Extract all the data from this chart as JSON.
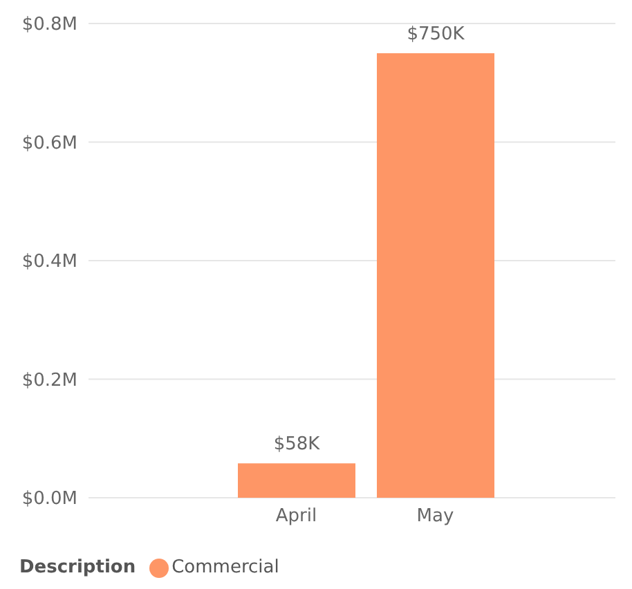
{
  "chart_data": {
    "type": "bar",
    "categories": [
      "April",
      "May"
    ],
    "series": [
      {
        "name": "Commercial",
        "color": "#fe9666",
        "values": [
          58000,
          750000
        ],
        "value_labels": [
          "$58K",
          "$750K"
        ]
      }
    ],
    "ylim": [
      0,
      800000
    ],
    "yticks": [
      {
        "value": 0,
        "label": "$0.0M"
      },
      {
        "value": 200000,
        "label": "$0.2M"
      },
      {
        "value": 400000,
        "label": "$0.4M"
      },
      {
        "value": 600000,
        "label": "$0.6M"
      },
      {
        "value": 800000,
        "label": "$0.8M"
      }
    ],
    "grid": "y",
    "legend": "bottom left",
    "legend_title": "Description"
  }
}
